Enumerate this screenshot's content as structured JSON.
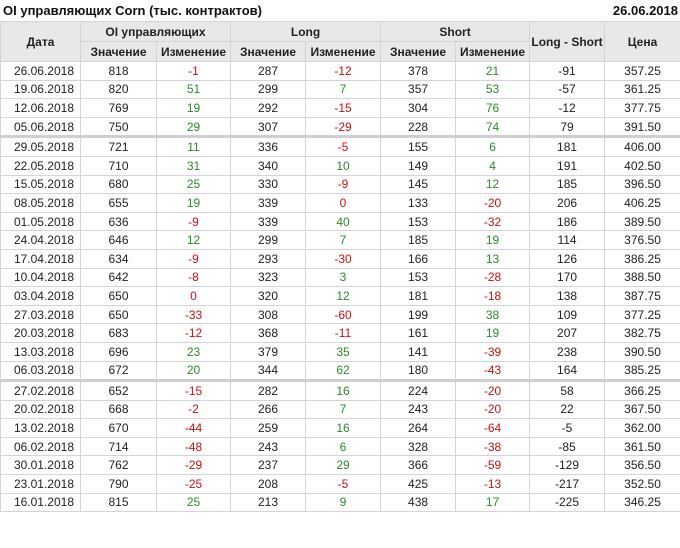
{
  "title": "OI управляющих Corn (тыс. контрактов)",
  "date": "26.06.2018",
  "colors": {
    "positive": "#2a8a2a",
    "negative": "#cc1111",
    "header_bg": "#e8e8e8"
  },
  "headers": {
    "date": "Дата",
    "oi": "OI управляющих",
    "long": "Long",
    "short": "Short",
    "long_short": "Long - Short",
    "price": "Цена",
    "value": "Значение",
    "change": "Изменение"
  },
  "rows": [
    [
      "26.06.2018",
      "818",
      "-1",
      "287",
      "-12",
      "378",
      "21",
      "-91",
      "357.25"
    ],
    [
      "19.06.2018",
      "820",
      "51",
      "299",
      "7",
      "357",
      "53",
      "-57",
      "361.25"
    ],
    [
      "12.06.2018",
      "769",
      "19",
      "292",
      "-15",
      "304",
      "76",
      "-12",
      "377.75"
    ],
    [
      "05.06.2018",
      "750",
      "29",
      "307",
      "-29",
      "228",
      "74",
      "79",
      "391.50"
    ],
    [
      "29.05.2018",
      "721",
      "11",
      "336",
      "-5",
      "155",
      "6",
      "181",
      "406.00"
    ],
    [
      "22.05.2018",
      "710",
      "31",
      "340",
      "10",
      "149",
      "4",
      "191",
      "402.50"
    ],
    [
      "15.05.2018",
      "680",
      "25",
      "330",
      "-9",
      "145",
      "12",
      "185",
      "396.50"
    ],
    [
      "08.05.2018",
      "655",
      "19",
      "339",
      "0",
      "133",
      "-20",
      "206",
      "406.25"
    ],
    [
      "01.05.2018",
      "636",
      "-9",
      "339",
      "40",
      "153",
      "-32",
      "186",
      "389.50"
    ],
    [
      "24.04.2018",
      "646",
      "12",
      "299",
      "7",
      "185",
      "19",
      "114",
      "376.50"
    ],
    [
      "17.04.2018",
      "634",
      "-9",
      "293",
      "-30",
      "166",
      "13",
      "126",
      "386.25"
    ],
    [
      "10.04.2018",
      "642",
      "-8",
      "323",
      "3",
      "153",
      "-28",
      "170",
      "388.50"
    ],
    [
      "03.04.2018",
      "650",
      "0",
      "320",
      "12",
      "181",
      "-18",
      "138",
      "387.75"
    ],
    [
      "27.03.2018",
      "650",
      "-33",
      "308",
      "-60",
      "199",
      "38",
      "109",
      "377.25"
    ],
    [
      "20.03.2018",
      "683",
      "-12",
      "368",
      "-11",
      "161",
      "19",
      "207",
      "382.75"
    ],
    [
      "13.03.2018",
      "696",
      "23",
      "379",
      "35",
      "141",
      "-39",
      "238",
      "390.50"
    ],
    [
      "06.03.2018",
      "672",
      "20",
      "344",
      "62",
      "180",
      "-43",
      "164",
      "385.25"
    ],
    [
      "27.02.2018",
      "652",
      "-15",
      "282",
      "16",
      "224",
      "-20",
      "58",
      "366.25"
    ],
    [
      "20.02.2018",
      "668",
      "-2",
      "266",
      "7",
      "243",
      "-20",
      "22",
      "367.50"
    ],
    [
      "13.02.2018",
      "670",
      "-44",
      "259",
      "16",
      "264",
      "-64",
      "-5",
      "362.00"
    ],
    [
      "06.02.2018",
      "714",
      "-48",
      "243",
      "6",
      "328",
      "-38",
      "-85",
      "361.50"
    ],
    [
      "30.01.2018",
      "762",
      "-29",
      "237",
      "29",
      "366",
      "-59",
      "-129",
      "356.50"
    ],
    [
      "23.01.2018",
      "790",
      "-25",
      "208",
      "-5",
      "425",
      "-13",
      "-217",
      "352.50"
    ],
    [
      "16.01.2018",
      "815",
      "25",
      "213",
      "9",
      "438",
      "17",
      "-225",
      "346.25"
    ]
  ],
  "month_start_rows": [
    4,
    17
  ],
  "negative_zero_cells": [
    [
      7,
      4
    ],
    [
      12,
      2
    ]
  ]
}
